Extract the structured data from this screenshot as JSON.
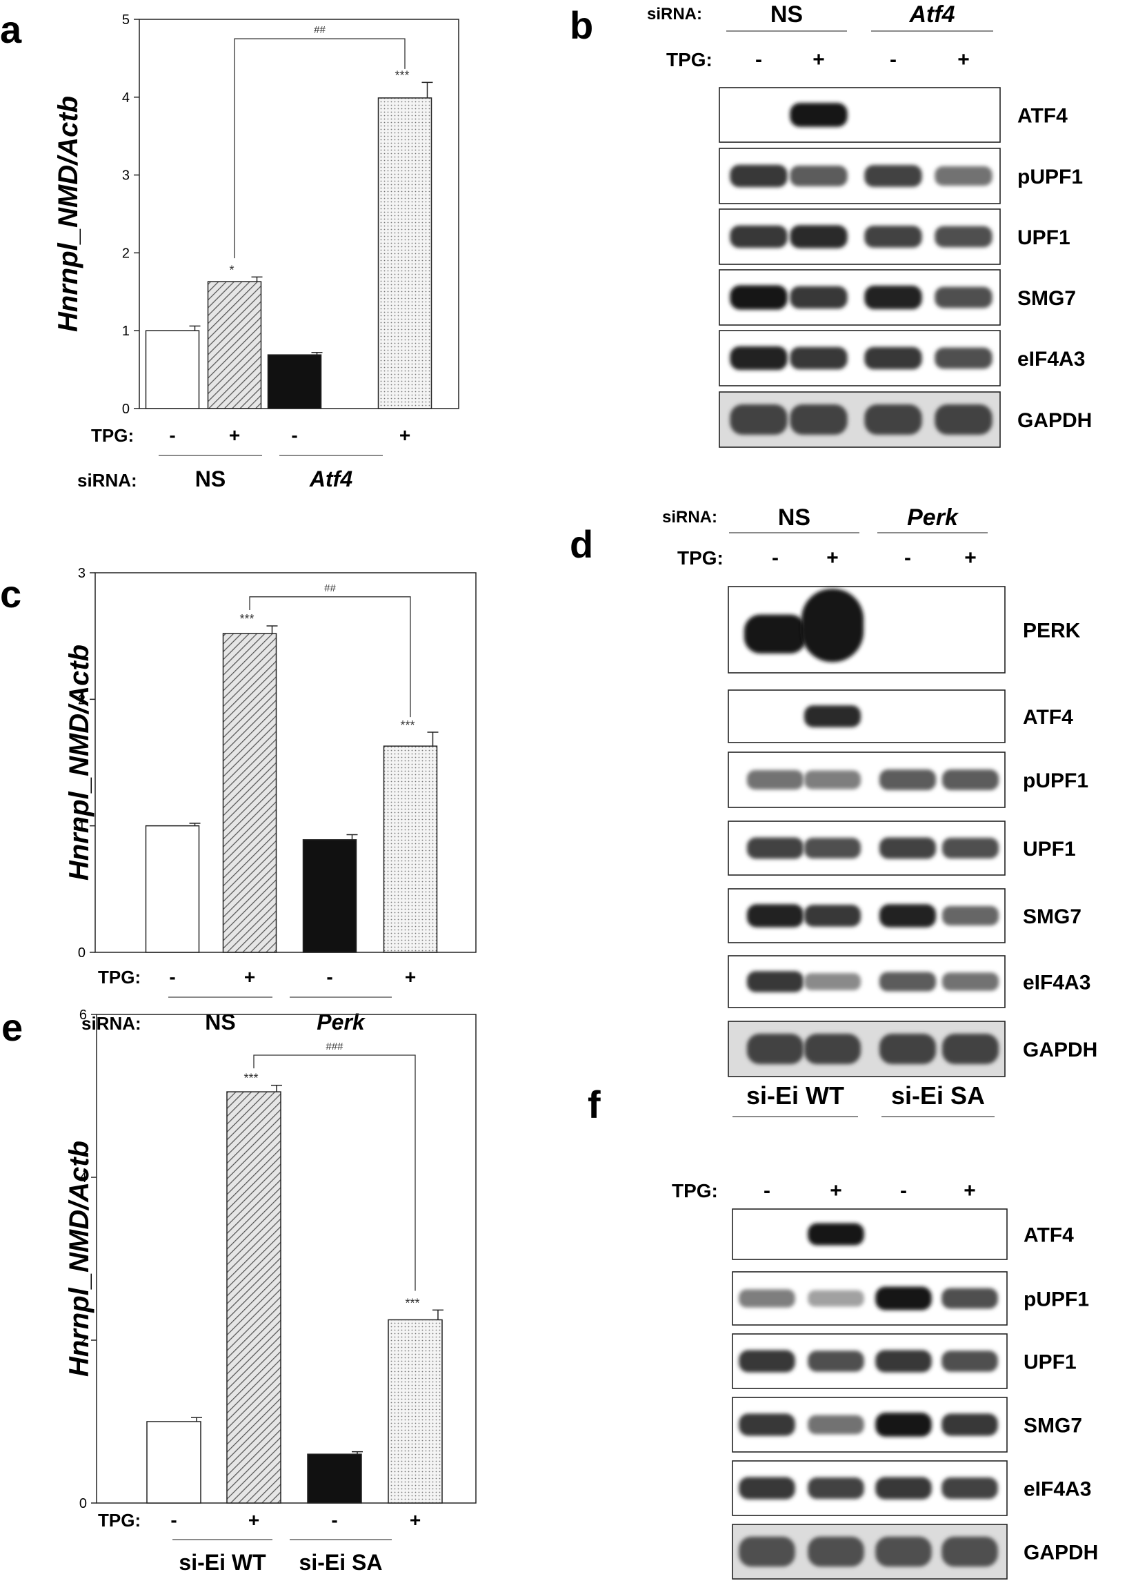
{
  "figure": {
    "panels": [
      {
        "letter": "a",
        "kind": "bar"
      },
      {
        "letter": "b",
        "kind": "blot"
      },
      {
        "letter": "c",
        "kind": "bar"
      },
      {
        "letter": "d",
        "kind": "blot"
      },
      {
        "letter": "e",
        "kind": "bar"
      },
      {
        "letter": "f",
        "kind": "blot"
      }
    ]
  },
  "chart_data": [
    {
      "panel": "a",
      "type": "bar",
      "ylabel": "Hnrnpl_NMD/Actb",
      "ylim": [
        0,
        5
      ],
      "yticks": [
        "0",
        "1",
        "2",
        "3",
        "4",
        "5"
      ],
      "values": [
        1.0,
        1.63,
        0.69,
        3.99
      ],
      "errors": [
        0.06,
        0.06,
        0.03,
        0.2
      ],
      "fills": [
        "white",
        "hatch",
        "black",
        "dots"
      ],
      "stars": [
        "",
        "*",
        "",
        "***"
      ],
      "bracket": {
        "from": 1,
        "to": 3,
        "label": "##",
        "level": 4.75
      },
      "row1_label": "TPG:",
      "tpg": [
        "-",
        "+",
        "-",
        "+"
      ],
      "row2_label": "siRNA:",
      "groups": [
        {
          "label": "NS",
          "italic": false
        },
        {
          "label": "Atf4",
          "italic": true
        }
      ]
    },
    {
      "panel": "c",
      "type": "bar",
      "ylabel": "Hnrnpl_NMD/Actb",
      "ylim": [
        0,
        3
      ],
      "yticks": [
        "0",
        "1",
        "2",
        "3"
      ],
      "values": [
        1.0,
        2.52,
        0.89,
        1.63
      ],
      "errors": [
        0.02,
        0.06,
        0.04,
        0.11
      ],
      "fills": [
        "white",
        "hatch",
        "black",
        "dots"
      ],
      "stars": [
        "",
        "***",
        "",
        "***"
      ],
      "bracket": {
        "from": 1,
        "to": 3,
        "label": "##",
        "level": 2.81
      },
      "row1_label": "TPG:",
      "tpg": [
        "-",
        "+",
        "-",
        "+"
      ],
      "row2_label": "siRNA:",
      "groups": [
        {
          "label": "NS",
          "italic": false
        },
        {
          "label": "Perk",
          "italic": true
        }
      ]
    },
    {
      "panel": "e",
      "type": "bar",
      "ylabel": "Hnrnpl_NMD/Actb",
      "ylim": [
        0,
        6
      ],
      "yticks": [
        "0",
        "2",
        "4",
        "6"
      ],
      "values": [
        1.0,
        5.05,
        0.6,
        2.25
      ],
      "errors": [
        0.05,
        0.08,
        0.03,
        0.12
      ],
      "fills": [
        "white",
        "hatch",
        "black",
        "dots"
      ],
      "stars": [
        "",
        "***",
        "",
        "***"
      ],
      "bracket": {
        "from": 1,
        "to": 3,
        "label": "###",
        "level": 5.5
      },
      "row1_label": "TPG:",
      "tpg": [
        "-",
        "+",
        "-",
        "+"
      ],
      "row2_label": "",
      "groups": [
        {
          "label": "si-Ei WT",
          "italic": false
        },
        {
          "label": "si-Ei SA",
          "italic": false
        }
      ]
    }
  ],
  "blots": [
    {
      "panel": "b",
      "siRNA_label": "siRNA:",
      "groups": [
        {
          "label": "NS",
          "italic": false
        },
        {
          "label": "Atf4",
          "italic": true
        }
      ],
      "tpg_label": "TPG:",
      "tpg": [
        "-",
        "+",
        "-",
        "+"
      ],
      "rows": [
        {
          "label": "ATF4",
          "intensity": [
            0,
            1,
            0,
            0
          ]
        },
        {
          "label": "pUPF1",
          "intensity": [
            0.85,
            0.7,
            0.8,
            0.6
          ]
        },
        {
          "label": "UPF1",
          "intensity": [
            0.85,
            0.9,
            0.8,
            0.75
          ]
        },
        {
          "label": "SMG7",
          "intensity": [
            1,
            0.85,
            0.95,
            0.75
          ]
        },
        {
          "label": "eIF4A3",
          "intensity": [
            0.95,
            0.85,
            0.85,
            0.75
          ]
        },
        {
          "label": "GAPDH",
          "intensity": [
            0.8,
            0.8,
            0.8,
            0.8
          ]
        }
      ]
    },
    {
      "panel": "d",
      "siRNA_label": "siRNA:",
      "groups": [
        {
          "label": "NS",
          "italic": false
        },
        {
          "label": "Perk",
          "italic": true
        }
      ],
      "tpg_label": "TPG:",
      "tpg": [
        "-",
        "+",
        "-",
        "+"
      ],
      "rows": [
        {
          "label": "PERK",
          "intensity": [
            1,
            1,
            0,
            0
          ]
        },
        {
          "label": "ATF4",
          "intensity": [
            0,
            0.9,
            0,
            0
          ]
        },
        {
          "label": "pUPF1",
          "intensity": [
            0.6,
            0.55,
            0.7,
            0.7
          ]
        },
        {
          "label": "UPF1",
          "intensity": [
            0.8,
            0.75,
            0.8,
            0.75
          ]
        },
        {
          "label": "SMG7",
          "intensity": [
            0.95,
            0.85,
            0.95,
            0.65
          ]
        },
        {
          "label": "eIF4A3",
          "intensity": [
            0.85,
            0.5,
            0.7,
            0.6
          ]
        },
        {
          "label": "GAPDH",
          "intensity": [
            0.8,
            0.8,
            0.8,
            0.8
          ]
        }
      ]
    },
    {
      "panel": "f",
      "siRNA_label": "",
      "groups": [
        {
          "label": "si-Ei WT",
          "italic": false
        },
        {
          "label": "si-Ei SA",
          "italic": false
        }
      ],
      "tpg_label": "TPG:",
      "tpg": [
        "-",
        "+",
        "-",
        "+"
      ],
      "rows": [
        {
          "label": "ATF4",
          "intensity": [
            0,
            1,
            0,
            0
          ]
        },
        {
          "label": "pUPF1",
          "intensity": [
            0.55,
            0.4,
            1,
            0.75
          ]
        },
        {
          "label": "UPF1",
          "intensity": [
            0.85,
            0.75,
            0.85,
            0.75
          ]
        },
        {
          "label": "SMG7",
          "intensity": [
            0.85,
            0.6,
            1,
            0.85
          ]
        },
        {
          "label": "eIF4A3",
          "intensity": [
            0.85,
            0.8,
            0.85,
            0.8
          ]
        },
        {
          "label": "GAPDH",
          "intensity": [
            0.75,
            0.75,
            0.75,
            0.75
          ]
        }
      ]
    }
  ]
}
